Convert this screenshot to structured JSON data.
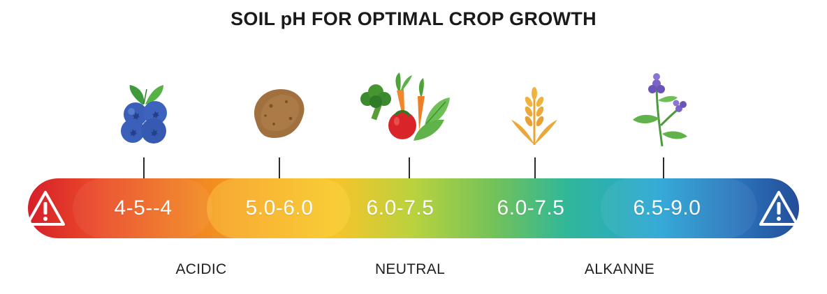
{
  "title": "SOIL pH FOR OPTIMAL CROP GROWTH",
  "colors": {
    "acidic": "#d61f2a",
    "neutral": "#b9d23e",
    "alkaline": "#244d98",
    "tick": "#2a2a2a"
  },
  "crops": [
    {
      "icon": "blueberries-icon",
      "range": "4-5--4"
    },
    {
      "icon": "potato-icon",
      "range": "5.0-6.0"
    },
    {
      "icon": "vegetables-icon",
      "range": "6.0-7.5"
    },
    {
      "icon": "wheat-icon",
      "range": "6.0-7.5"
    },
    {
      "icon": "lavender-icon",
      "range": "6.5-9.0"
    }
  ],
  "categories": [
    "ACIDIC",
    "NEUTRAL",
    "ALKANNE"
  ],
  "warnings": {
    "left_icon": "warning-icon-red",
    "right_icon": "warning-icon-blue"
  }
}
